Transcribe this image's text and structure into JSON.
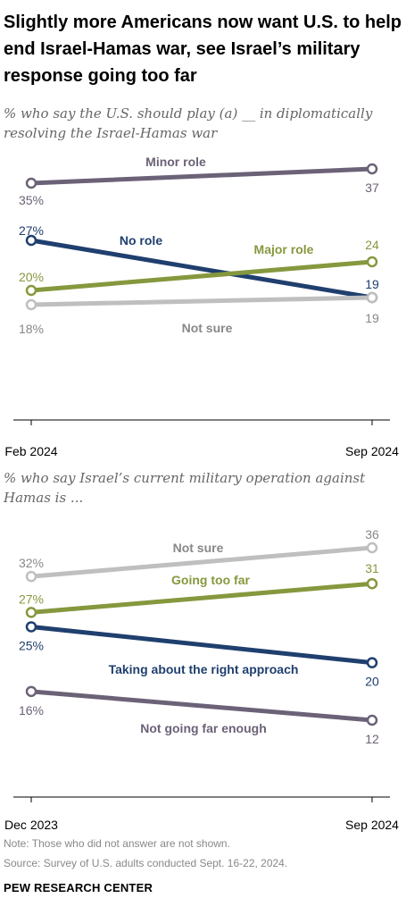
{
  "title": "Slightly more Americans now want U.S. to help end Israel-Hamas war, see Israel’s military response going too far",
  "note": "Note: Those who did not answer are not shown.",
  "source": "Source: Survey of U.S. adults conducted Sept. 16-22, 2024.",
  "brand": "PEW RESEARCH CENTER",
  "chart_data": [
    {
      "type": "line",
      "subtitle": "% who say the U.S. should play (a) __ in diplomatically resolving the Israel-Hamas war",
      "x": [
        "Feb 2024",
        "Sep 2024"
      ],
      "series": [
        {
          "name": "Minor role",
          "values": [
            35,
            37
          ],
          "labels": [
            "35%",
            "37"
          ],
          "color": "#6c6278"
        },
        {
          "name": "No role",
          "values": [
            27,
            19
          ],
          "labels": [
            "27%",
            "19"
          ],
          "color": "#1f3f6e"
        },
        {
          "name": "Major role",
          "values": [
            20,
            24
          ],
          "labels": [
            "20%",
            "24"
          ],
          "color": "#86983e"
        },
        {
          "name": "Not sure",
          "values": [
            18,
            19
          ],
          "labels": [
            "18%",
            "19"
          ],
          "color": "#bfbfbf"
        }
      ]
    },
    {
      "type": "line",
      "subtitle": "% who say Israel’s current military operation against Hamas is ...",
      "x": [
        "Dec 2023",
        "Sep 2024"
      ],
      "series": [
        {
          "name": "Not sure",
          "values": [
            32,
            36
          ],
          "labels": [
            "32%",
            "36"
          ],
          "color": "#bfbfbf"
        },
        {
          "name": "Going too far",
          "values": [
            27,
            31
          ],
          "labels": [
            "27%",
            "31"
          ],
          "color": "#86983e"
        },
        {
          "name": "Taking about the right approach",
          "values": [
            25,
            20
          ],
          "labels": [
            "25%",
            "20"
          ],
          "color": "#1f3f6e"
        },
        {
          "name": "Not going far enough",
          "values": [
            16,
            12
          ],
          "labels": [
            "16%",
            "12"
          ],
          "color": "#6c6278"
        }
      ]
    }
  ]
}
